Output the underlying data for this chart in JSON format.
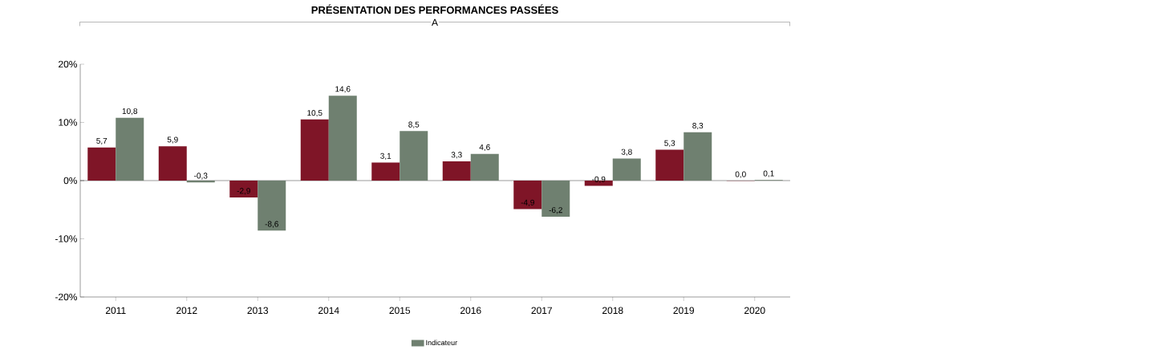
{
  "chart_data": {
    "type": "bar",
    "title": "PRÉSENTATION DES PERFORMANCES PASSÉES",
    "annotations": [
      "A"
    ],
    "categories": [
      "2011",
      "2012",
      "2013",
      "2014",
      "2015",
      "2016",
      "2017",
      "2018",
      "2019",
      "2020"
    ],
    "series": [
      {
        "color": "#7f1527",
        "values": [
          5.7,
          5.9,
          -2.9,
          10.5,
          3.1,
          3.3,
          -4.9,
          -0.9,
          5.3,
          -0.04
        ],
        "value_labels": [
          "5,7",
          "5,9",
          "-2,9",
          "10,5",
          "3,1",
          "3,3",
          "-4,9",
          "-0,9",
          "5,3",
          "0,0"
        ]
      },
      {
        "name": "Indicateur",
        "color": "#6f8070",
        "values": [
          10.8,
          -0.3,
          -8.6,
          14.6,
          8.5,
          4.6,
          -6.2,
          3.8,
          8.3,
          0.1
        ],
        "value_labels": [
          "10,8",
          "-0,3",
          "-8,6",
          "14,6",
          "8,5",
          "4,6",
          "-6,2",
          "3,8",
          "8,3",
          "0,1"
        ]
      }
    ],
    "ylim": [
      -20,
      20
    ],
    "yticks": [
      {
        "value": -20,
        "label": "-20%"
      },
      {
        "value": -10,
        "label": "-10%"
      },
      {
        "value": 0,
        "label": "0%"
      },
      {
        "value": 10,
        "label": "10%"
      },
      {
        "value": 20,
        "label": "20%"
      }
    ],
    "legend": "bottom"
  }
}
